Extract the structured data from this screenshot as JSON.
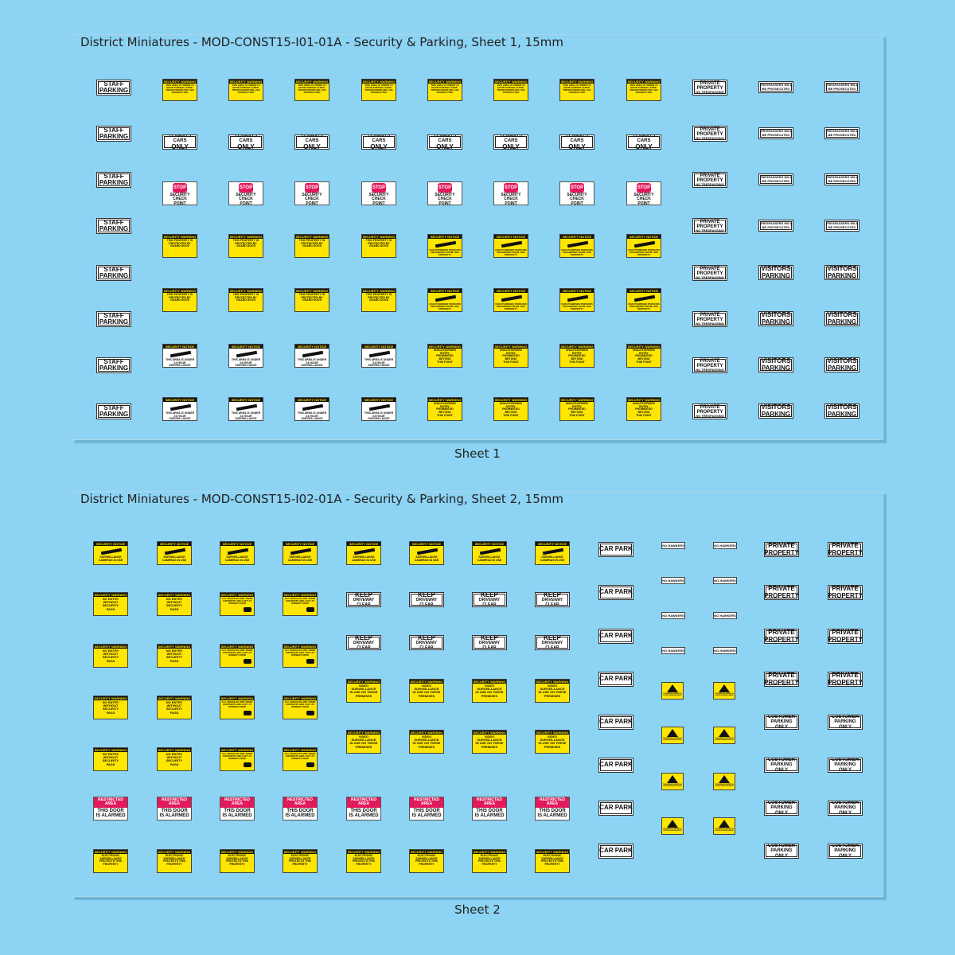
{
  "sheets": [
    {
      "title": "District Miniatures - MOD-CONST15-I01-01A - Security & Parking, Sheet 1, 15mm",
      "caption": "Sheet 1"
    },
    {
      "title": "District Miniatures - MOD-CONST15-I02-01A - Security & Parking, Sheet 2, 15mm",
      "caption": "Sheet 2"
    }
  ],
  "labels": {
    "staff_parking": [
      "STAFF",
      "PARKING"
    ],
    "security_warning": "SECURITY WARNING",
    "security_notice": "SECURITY NOTICE",
    "cctv_text": "THIS AREA IS UNDER 24 HOUR SURVEILLANCE. TRESPASSERS WILL BE PROSECUTED",
    "tenants_cars": [
      "TENANTS CARS",
      "ONLY"
    ],
    "stop": "STOP",
    "security_check": [
      "SECURITY",
      "CHECK",
      "POINT"
    ],
    "guard_dogs": "THIS PROPERTY IS PROTECTED BY GUARD DOGS",
    "unauthorized": "UNAUTHORISED PERSONS PROHIBITED FROM THIS PROPERTY",
    "area_surveillance": "THIS AREA IS UNDER 24 HOUR SURVEILLANCE",
    "no_entry_beyond": [
      "UNAUTHORISED",
      "ENTRY",
      "PROHIBITED",
      "BEYOND",
      "THIS POINT"
    ],
    "private_property": [
      "PRIVATE",
      "PROPERTY"
    ],
    "no_trespassing": "NO TRESPASSING",
    "trespassers": [
      "TRESPASSERS WILL",
      "BE PROSECUTED"
    ],
    "visitors_parking": [
      "VISITORS",
      "PARKING"
    ],
    "surveillance_cameras": "SURVEILLANCE CAMERAS IN USE",
    "car_park": "CAR PARK",
    "no_hawkers": "NO HAWKERS",
    "keep_clear": [
      "KEEP",
      "DRIVEWAY CLEAR"
    ],
    "no_entry_pass": [
      "NO ENTRY",
      "WITHOUT",
      "SECURITY",
      "PASS"
    ],
    "vehicles_left": "ALL VEHICLES AND THEIR CONTENTS ARE LEFT AT OWNER'S RISK",
    "video_surveillance": [
      "VIDEO",
      "SURVEILLANCE",
      "IN USE ON THESE",
      "PREMISES"
    ],
    "restricted_area": [
      "RESTRICTED",
      "AREA"
    ],
    "door_alarmed": [
      "THIS DOOR",
      "IS ALARMED"
    ],
    "electronic_surveillance": "ELECTRONIC SURVEILLANCE PROTECTS THIS PROPERTY",
    "customer_parking": [
      "CUSTOMER",
      "PARKING ONLY"
    ],
    "area_24h": "THIS AREA IS UNDER 24 HOURS SURVEILLANCE"
  },
  "colors": {
    "background": "#8dd3f3",
    "warning_yellow": "#ffe600",
    "alert_pink": "#e2195b"
  }
}
